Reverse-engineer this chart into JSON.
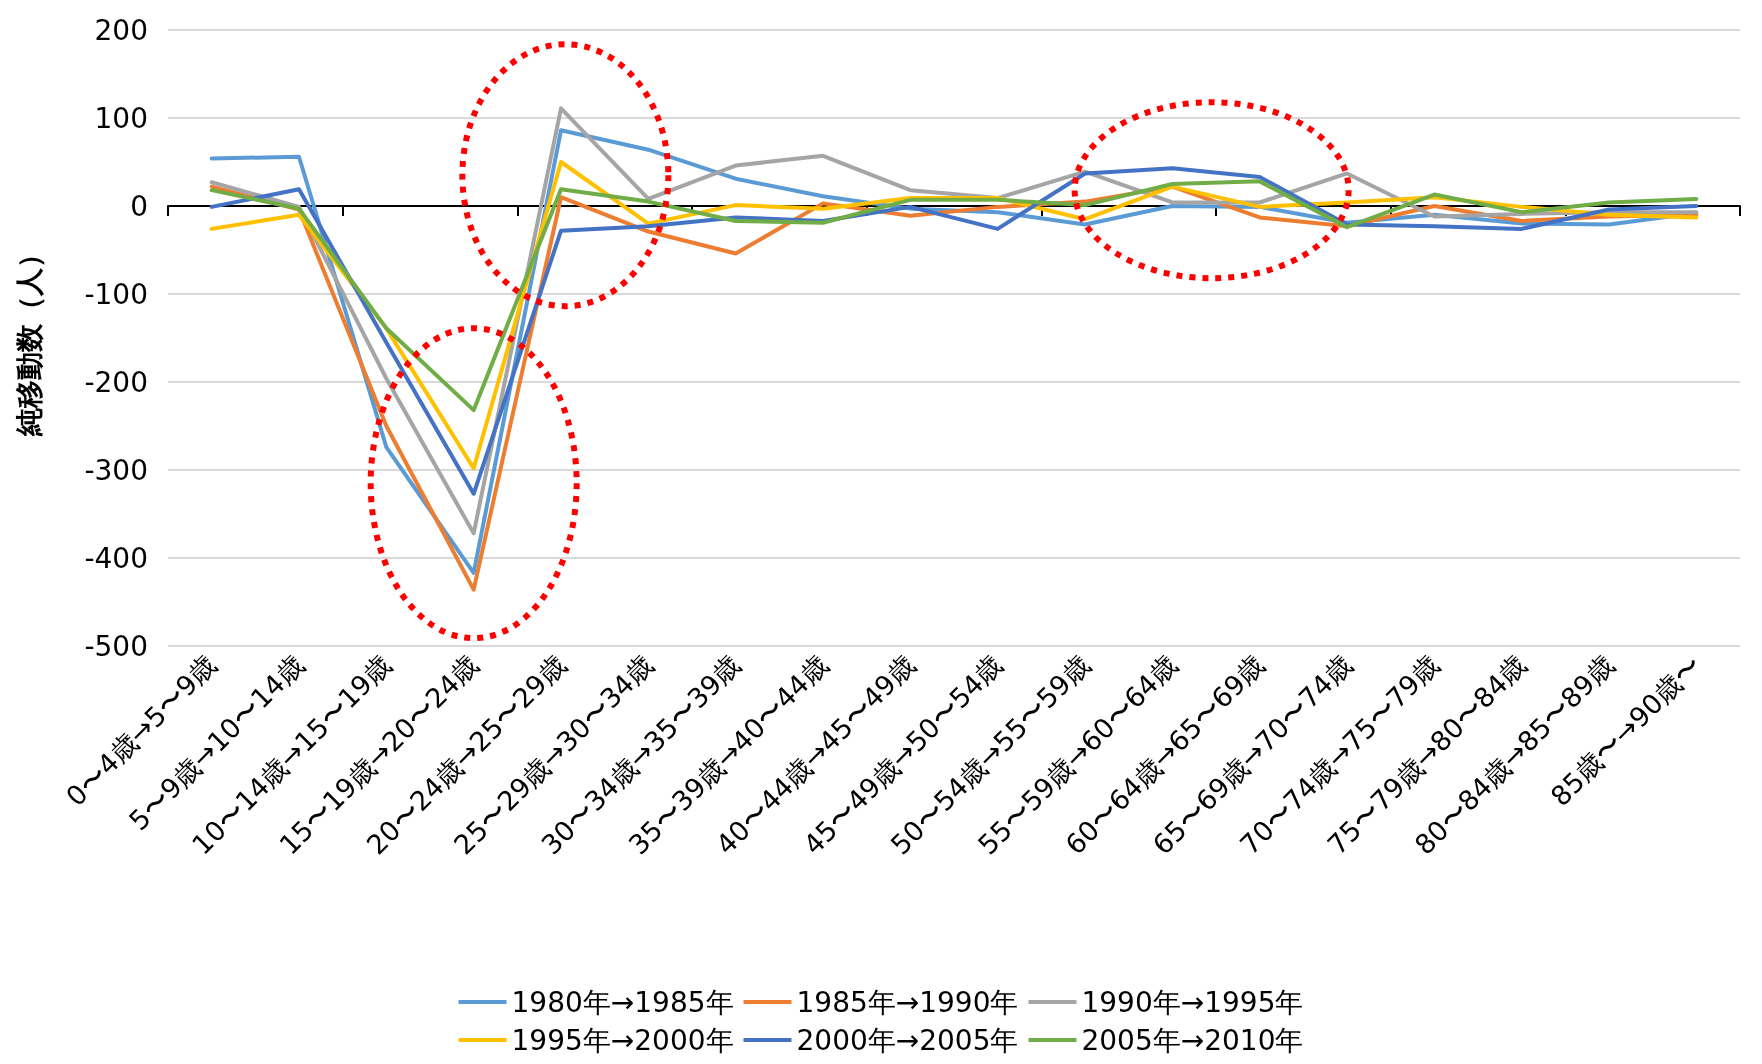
{
  "chart_data": {
    "type": "line",
    "ylabel": "純移動数（人）",
    "categories": [
      "0〜4歳→5〜9歳",
      "5〜9歳→10〜14歳",
      "10〜14歳→15〜19歳",
      "15〜19歳→20〜24歳",
      "20〜24歳→25〜29歳",
      "25〜29歳→30〜34歳",
      "30〜34歳→35〜39歳",
      "35〜39歳→40〜44歳",
      "40〜44歳→45〜49歳",
      "45〜49歳→50〜54歳",
      "50〜54歳→55〜59歳",
      "55〜59歳→60〜64歳",
      "60〜64歳→65〜69歳",
      "65〜69歳→70〜74歳",
      "70〜74歳→75〜79歳",
      "75〜79歳→80〜84歳",
      "80〜84歳→85〜89歳",
      "85歳〜→90歳〜"
    ],
    "series": [
      {
        "name": "1980年→1985年",
        "color": "#5b9bd5",
        "values": [
          54,
          56,
          -274,
          -417,
          86,
          64,
          31,
          11,
          -3,
          -7,
          -21,
          0,
          -1,
          -19,
          -10,
          -20,
          -21,
          -8
        ]
      },
      {
        "name": "1985年→1990年",
        "color": "#ed7d31",
        "values": [
          22,
          -4,
          -250,
          -436,
          10,
          -29,
          -54,
          3,
          -11,
          -1,
          5,
          22,
          -13,
          -23,
          0,
          -17,
          -12,
          -10
        ]
      },
      {
        "name": "1990年→1995年",
        "color": "#a5a5a5",
        "values": [
          27,
          -1,
          -196,
          -372,
          111,
          8,
          46,
          57,
          18,
          9,
          39,
          4,
          4,
          37,
          -12,
          -9,
          -7,
          -7
        ]
      },
      {
        "name": "1995年→2000年",
        "color": "#ffc000",
        "values": [
          -26,
          -10,
          -139,
          -298,
          50,
          -20,
          1,
          -3,
          9,
          9,
          -15,
          22,
          -1,
          4,
          10,
          -1,
          -10,
          -13
        ]
      },
      {
        "name": "2000年→2005年",
        "color": "#4472c4",
        "values": [
          -1,
          19,
          -155,
          -327,
          -28,
          -23,
          -13,
          -17,
          -1,
          -26,
          37,
          43,
          33,
          -21,
          -23,
          -26,
          -4,
          0
        ]
      },
      {
        "name": "2005年→2010年",
        "color": "#70ad47",
        "values": [
          18,
          -3,
          -139,
          -232,
          19,
          5,
          -17,
          -19,
          7,
          7,
          1,
          25,
          28,
          -24,
          13,
          -7,
          4,
          8
        ]
      }
    ],
    "ylim": [
      -500,
      200
    ],
    "yticks": [
      -500,
      -400,
      -300,
      -200,
      -100,
      0,
      100,
      200
    ],
    "grid": "y",
    "legend": "bottom",
    "marker": "none",
    "line_style": "solid"
  }
}
